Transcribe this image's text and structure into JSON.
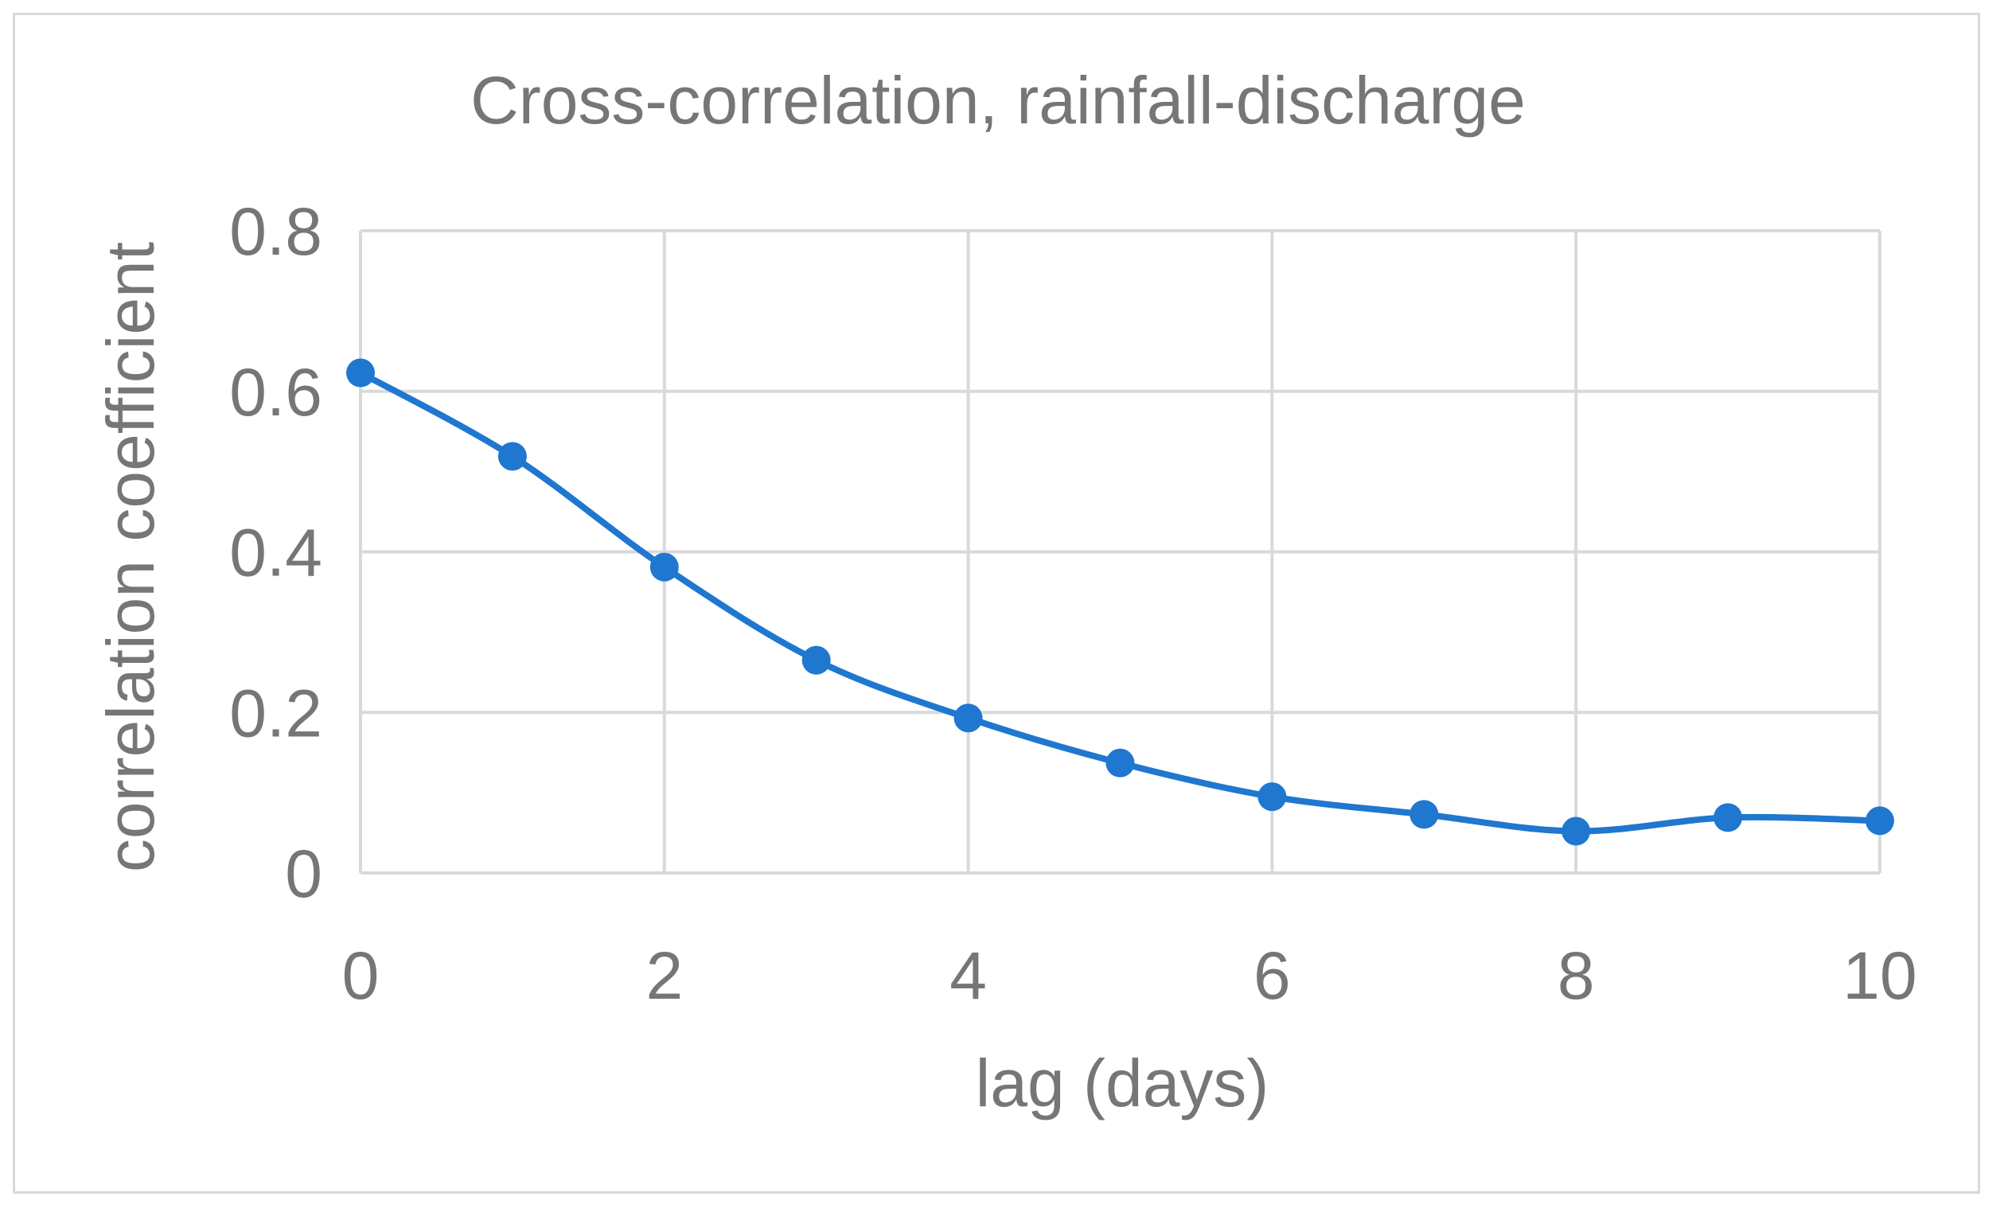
{
  "chart_data": {
    "type": "line",
    "title": "Cross-correlation, rainfall-discharge",
    "xlabel": "lag (days)",
    "ylabel": "correlation coefficient",
    "x": [
      0,
      1,
      2,
      3,
      4,
      5,
      6,
      7,
      8,
      9,
      10
    ],
    "series": [
      {
        "name": "correlation coefficient",
        "color": "#1f77d0",
        "values": [
          0.623,
          0.519,
          0.381,
          0.265,
          0.193,
          0.137,
          0.095,
          0.073,
          0.052,
          0.069,
          0.065
        ]
      }
    ],
    "xlim": [
      0,
      10
    ],
    "ylim": [
      0,
      0.8
    ],
    "xticks": [
      0,
      2,
      4,
      6,
      8,
      10
    ],
    "xtick_labels": [
      "0",
      "2",
      "4",
      "6",
      "8",
      "10"
    ],
    "yticks": [
      0,
      0.2,
      0.4,
      0.6,
      0.8
    ],
    "ytick_labels": [
      "0",
      "0.2",
      "0.4",
      "0.6",
      "0.8"
    ],
    "grid": true,
    "smooth": true,
    "markers": true
  }
}
